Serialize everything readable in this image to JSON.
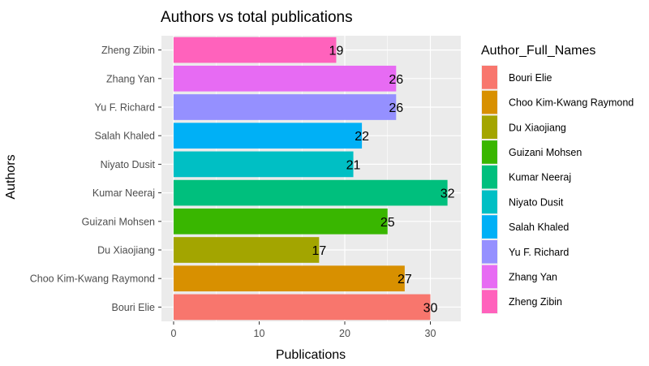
{
  "chart_data": {
    "type": "bar",
    "orientation": "horizontal",
    "title": "Authors vs total publications",
    "xlabel": "Publications",
    "ylabel": "Authors",
    "xlim": [
      0,
      34
    ],
    "x_ticks": [
      0,
      10,
      20,
      30
    ],
    "grid": true,
    "legend_position": "right",
    "legend_title": "Author_Full_Names",
    "categories": [
      "Bouri Elie",
      "Choo Kim-Kwang Raymond",
      "Du Xiaojiang",
      "Guizani Mohsen",
      "Kumar Neeraj",
      "Niyato Dusit",
      "Salah Khaled",
      "Yu F. Richard",
      "Zhang Yan",
      "Zheng Zibin"
    ],
    "values": [
      30,
      27,
      17,
      25,
      32,
      21,
      22,
      26,
      26,
      19
    ],
    "colors": [
      "#F8766D",
      "#D89000",
      "#A3A500",
      "#39B600",
      "#00BF7D",
      "#00BFC4",
      "#00B0F6",
      "#9590FF",
      "#E76BF3",
      "#FF62BC"
    ],
    "panel_background": "#EBEBEB",
    "grid_color": "#FFFFFF"
  }
}
